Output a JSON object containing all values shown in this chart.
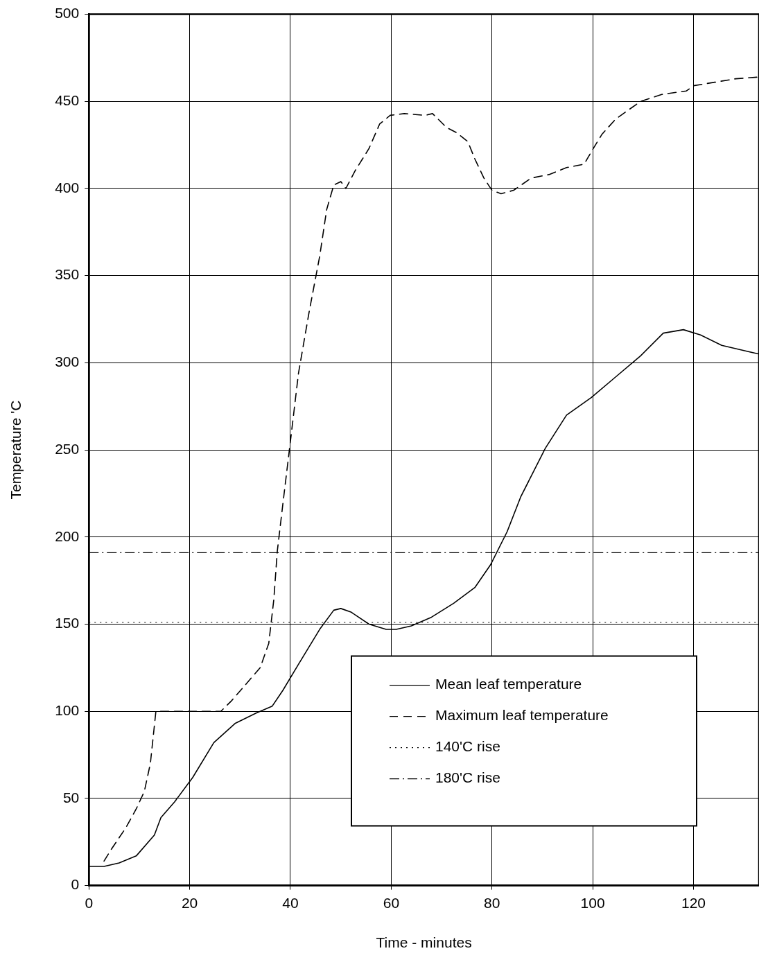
{
  "chart_data": {
    "type": "line",
    "xlabel": "Time - minutes",
    "ylabel": "Temperature 'C",
    "xlim": [
      0,
      133
    ],
    "xticks": [
      0,
      20,
      40,
      60,
      80,
      100,
      120
    ],
    "ylim": [
      0,
      500
    ],
    "yticks": [
      0,
      50,
      100,
      150,
      200,
      250,
      300,
      350,
      400,
      450,
      500
    ],
    "grid": true,
    "legend": "bottom right",
    "marker": "none",
    "series": [
      {
        "name": "Mean leaf temperature",
        "color": "#000000",
        "line_style": "solid",
        "x": [
          0,
          3,
          6,
          9.4,
          13,
          14.3,
          17,
          20.6,
          24.8,
          29,
          33.2,
          36.4,
          38.5,
          41.6,
          45.8,
          48.6,
          50,
          52,
          55.6,
          59,
          61,
          64,
          68,
          72.4,
          76.6,
          79.7,
          83,
          85.7,
          90.6,
          94.8,
          99.7,
          104.6,
          109.5,
          114,
          118,
          121.4,
          125.6,
          130,
          133
        ],
        "values": [
          11,
          11,
          13,
          17,
          29,
          39,
          48,
          62,
          82,
          93,
          99,
          103,
          112,
          127,
          147,
          158,
          159,
          157,
          150,
          147,
          147,
          149,
          154,
          162,
          171,
          184,
          203,
          223,
          251,
          270,
          280,
          292,
          304,
          317,
          319,
          316,
          310,
          307,
          305
        ]
      },
      {
        "name": "Maximum leaf temperature",
        "color": "#000000",
        "line_style": "dashed",
        "x": [
          3,
          4.5,
          7.3,
          9.4,
          11,
          12.2,
          13.3,
          15,
          20.6,
          26.2,
          28.3,
          31,
          34,
          35.7,
          36.7,
          37.4,
          38.5,
          40,
          41.6,
          43.7,
          45.8,
          47.2,
          48.6,
          50,
          51,
          52.8,
          55.6,
          57.7,
          59.8,
          62.6,
          66.8,
          68.2,
          71,
          73,
          75.2,
          76.6,
          78.4,
          80,
          81.8,
          84.3,
          87.8,
          91.3,
          94.8,
          98.3,
          99.7,
          101.8,
          104.6,
          109.5,
          113.7,
          118.6,
          120,
          124.2,
          128.4,
          133
        ],
        "values": [
          14,
          21,
          33,
          44,
          54,
          70,
          100,
          100,
          100,
          100,
          106,
          115,
          125,
          139,
          164,
          192,
          219,
          255,
          294,
          329,
          361,
          388,
          402,
          404,
          400,
          410,
          423,
          437,
          442,
          443,
          442,
          443,
          435,
          432,
          427,
          417,
          406,
          399,
          397,
          399,
          406,
          408,
          412,
          414,
          421,
          431,
          440,
          450,
          454,
          456,
          459,
          461,
          463,
          464
        ]
      }
    ],
    "ref_lines": [
      {
        "axis": "y",
        "value": 151,
        "label": "140'C rise",
        "color": "#000000",
        "line_style": "dotted"
      },
      {
        "axis": "y",
        "value": 191,
        "label": "180'C rise",
        "color": "#000000",
        "line_style": "dashdot"
      }
    ]
  }
}
